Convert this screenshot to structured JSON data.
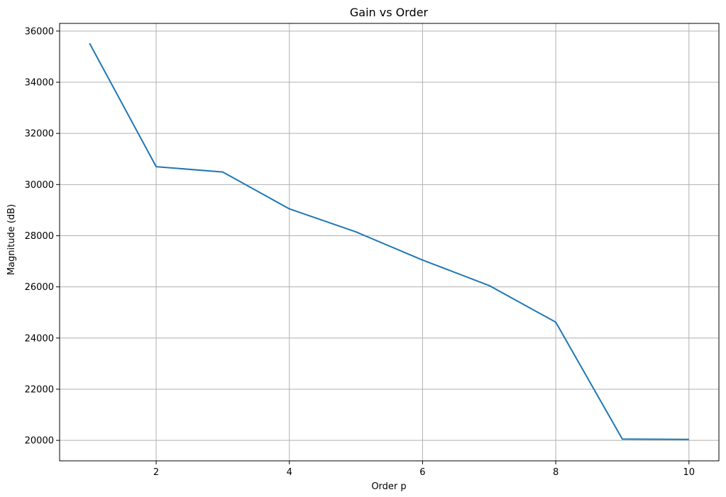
{
  "chart_data": {
    "type": "line",
    "title": "Gain vs Order",
    "xlabel": "Order p",
    "ylabel": "Magnitude (dB)",
    "xlim": [
      0.55,
      10.45
    ],
    "ylim": [
      19200,
      36300
    ],
    "xticks": [
      2,
      4,
      6,
      8,
      10
    ],
    "yticks": [
      20000,
      22000,
      24000,
      26000,
      28000,
      30000,
      32000,
      34000,
      36000
    ],
    "grid": true,
    "series": [
      {
        "color": "#1f77b4",
        "x": [
          1,
          2,
          3,
          4,
          5,
          6,
          7,
          8,
          9,
          10
        ],
        "y": [
          35520,
          30700,
          30490,
          29050,
          28150,
          27050,
          26050,
          24620,
          20050,
          20040
        ]
      }
    ]
  }
}
